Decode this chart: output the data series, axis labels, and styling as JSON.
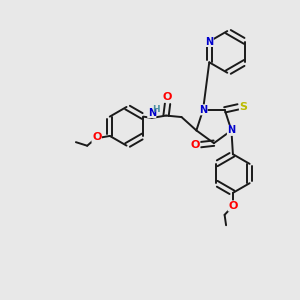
{
  "bg_color": "#e8e8e8",
  "bond_color": "#1a1a1a",
  "atom_colors": {
    "N": "#0000cc",
    "O": "#ff0000",
    "S": "#bbbb00",
    "H": "#4a8fa0",
    "C": "#1a1a1a"
  }
}
